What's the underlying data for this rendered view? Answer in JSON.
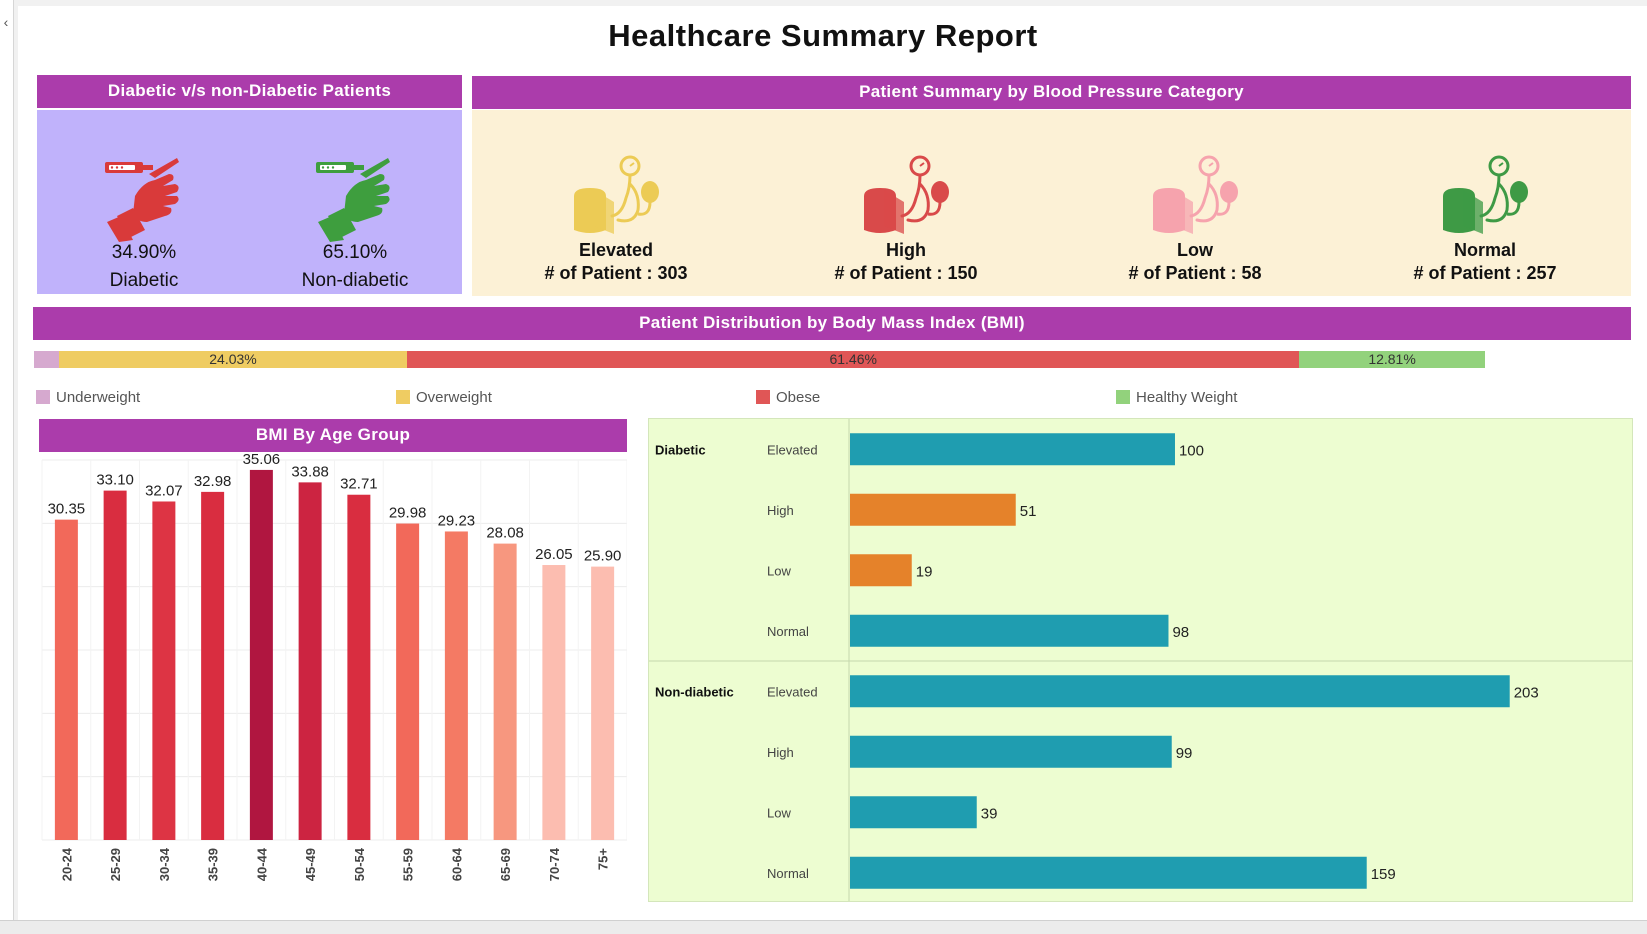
{
  "report": {
    "title": "Healthcare Summary Report"
  },
  "diabetes": {
    "header": "Diabetic v/s non-Diabetic Patients",
    "items": [
      {
        "pct": "34.90%",
        "label": "Diabetic",
        "color": "#d93a3a",
        "icon": "glucose-meter-hand-icon"
      },
      {
        "pct": "65.10%",
        "label": "Non-diabetic",
        "color": "#3e9e3e",
        "icon": "glucose-meter-hand-icon"
      }
    ]
  },
  "bp": {
    "header": "Patient Summary by Blood Pressure Category",
    "items": [
      {
        "name": "Elevated",
        "count": "# of Patient : 303",
        "color": "#eccb55",
        "icon": "blood-pressure-monitor-icon"
      },
      {
        "name": "High",
        "count": "# of Patient : 150",
        "color": "#d94a4a",
        "icon": "blood-pressure-monitor-icon"
      },
      {
        "name": "Low",
        "count": "# of Patient : 58",
        "color": "#f6a3ad",
        "icon": "blood-pressure-monitor-icon"
      },
      {
        "name": "Normal",
        "count": "# of Patient : 257",
        "color": "#3e9a45",
        "icon": "blood-pressure-monitor-icon"
      }
    ]
  },
  "bmi_band": {
    "header": "Patient Distribution by Body Mass Index (BMI)"
  },
  "bmi_age_band": {
    "header": "BMI By Age Group"
  },
  "chart_data": [
    {
      "type": "bar",
      "orientation": "horizontal-stacked",
      "categories": [
        "Underweight",
        "Overweight",
        "Obese",
        "Healthy Weight"
      ],
      "values": [
        1.7,
        24.03,
        61.46,
        12.81
      ],
      "value_labels": [
        "",
        "24.03%",
        "61.46%",
        "12.81%"
      ],
      "colors": [
        "#d6a9cf",
        "#efcc62",
        "#e05656",
        "#92d27c"
      ],
      "legend": "bottom"
    },
    {
      "type": "bar",
      "title": "BMI By Age Group",
      "categories": [
        "20-24",
        "25-29",
        "30-34",
        "35-39",
        "40-44",
        "45-49",
        "50-54",
        "55-59",
        "60-64",
        "65-69",
        "70-74",
        "75+"
      ],
      "values": [
        30.35,
        33.1,
        32.07,
        32.98,
        35.06,
        33.88,
        32.71,
        29.98,
        29.23,
        28.08,
        26.05,
        25.9
      ],
      "value_labels": [
        "30.35",
        "33.10",
        "32.07",
        "32.98",
        "35.06",
        "33.88",
        "32.71",
        "29.98",
        "29.23",
        "28.08",
        "26.05",
        "25.90"
      ],
      "colors": [
        "#f2695a",
        "#d92d40",
        "#dd3444",
        "#d92d40",
        "#b01640",
        "#cc2441",
        "#d92d40",
        "#f2695a",
        "#f47a64",
        "#f7977f",
        "#fcbdb0",
        "#fcbdb0"
      ],
      "ylim": [
        0,
        36
      ],
      "grid": true
    },
    {
      "type": "bar",
      "orientation": "horizontal",
      "groups": [
        {
          "name": "Diabetic",
          "rows": [
            {
              "label": "Elevated",
              "value": 100,
              "color": "#1f9db0"
            },
            {
              "label": "High",
              "value": 51,
              "color": "#e5822a"
            },
            {
              "label": "Low",
              "value": 19,
              "color": "#e5822a"
            },
            {
              "label": "Normal",
              "value": 98,
              "color": "#1f9db0"
            }
          ]
        },
        {
          "name": "Non-diabetic",
          "rows": [
            {
              "label": "Elevated",
              "value": 203,
              "color": "#1f9db0"
            },
            {
              "label": "High",
              "value": 99,
              "color": "#1f9db0"
            },
            {
              "label": "Low",
              "value": 39,
              "color": "#1f9db0"
            },
            {
              "label": "Normal",
              "value": 159,
              "color": "#1f9db0"
            }
          ]
        }
      ],
      "xlim": [
        0,
        220
      ]
    }
  ]
}
